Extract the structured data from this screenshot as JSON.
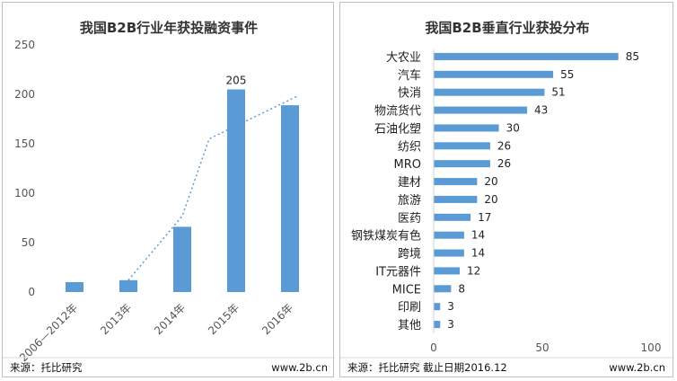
{
  "chart_data": [
    {
      "type": "bar",
      "title": "我国B2B行业年获投融资事件",
      "categories": [
        "2006—2012年",
        "2013年",
        "2014年",
        "2015年",
        "2016年"
      ],
      "values": [
        10,
        12,
        66,
        205,
        189
      ],
      "data_labels": [
        "",
        "",
        "",
        "205",
        ""
      ],
      "ylim": [
        0,
        250
      ],
      "yticks": [
        "0",
        "50",
        "100",
        "150",
        "200",
        "250"
      ],
      "trendline": "dotted linear",
      "grid": false,
      "bar_color": "#5b9bd5",
      "source": "来源：托比研究",
      "website": "www.2b.cn"
    },
    {
      "type": "bar",
      "orientation": "horizontal",
      "title": "我国B2B垂直行业获投分布",
      "categories": [
        "大农业",
        "汽车",
        "快消",
        "物流货代",
        "石油化塑",
        "纺织",
        "MRO",
        "建材",
        "旅游",
        "医药",
        "钢铁煤炭有色",
        "跨境",
        "IT元器件",
        "MICE",
        "印刷",
        "其他"
      ],
      "values": [
        85,
        55,
        51,
        43,
        30,
        26,
        26,
        20,
        20,
        17,
        14,
        14,
        12,
        8,
        3,
        3
      ],
      "value_labels": [
        "85",
        "55",
        "51",
        "43",
        "30",
        "26",
        "26",
        "20",
        "20",
        "17",
        "14",
        "14",
        "12",
        "8",
        "3",
        "3"
      ],
      "xlim": [
        0,
        100
      ],
      "xticks": [
        "0",
        "50",
        "100"
      ],
      "grid": false,
      "bar_color": "#5b9bd5",
      "source": "来源：托比研究 截止日期2016.12",
      "website": "www.2b.cn"
    }
  ]
}
